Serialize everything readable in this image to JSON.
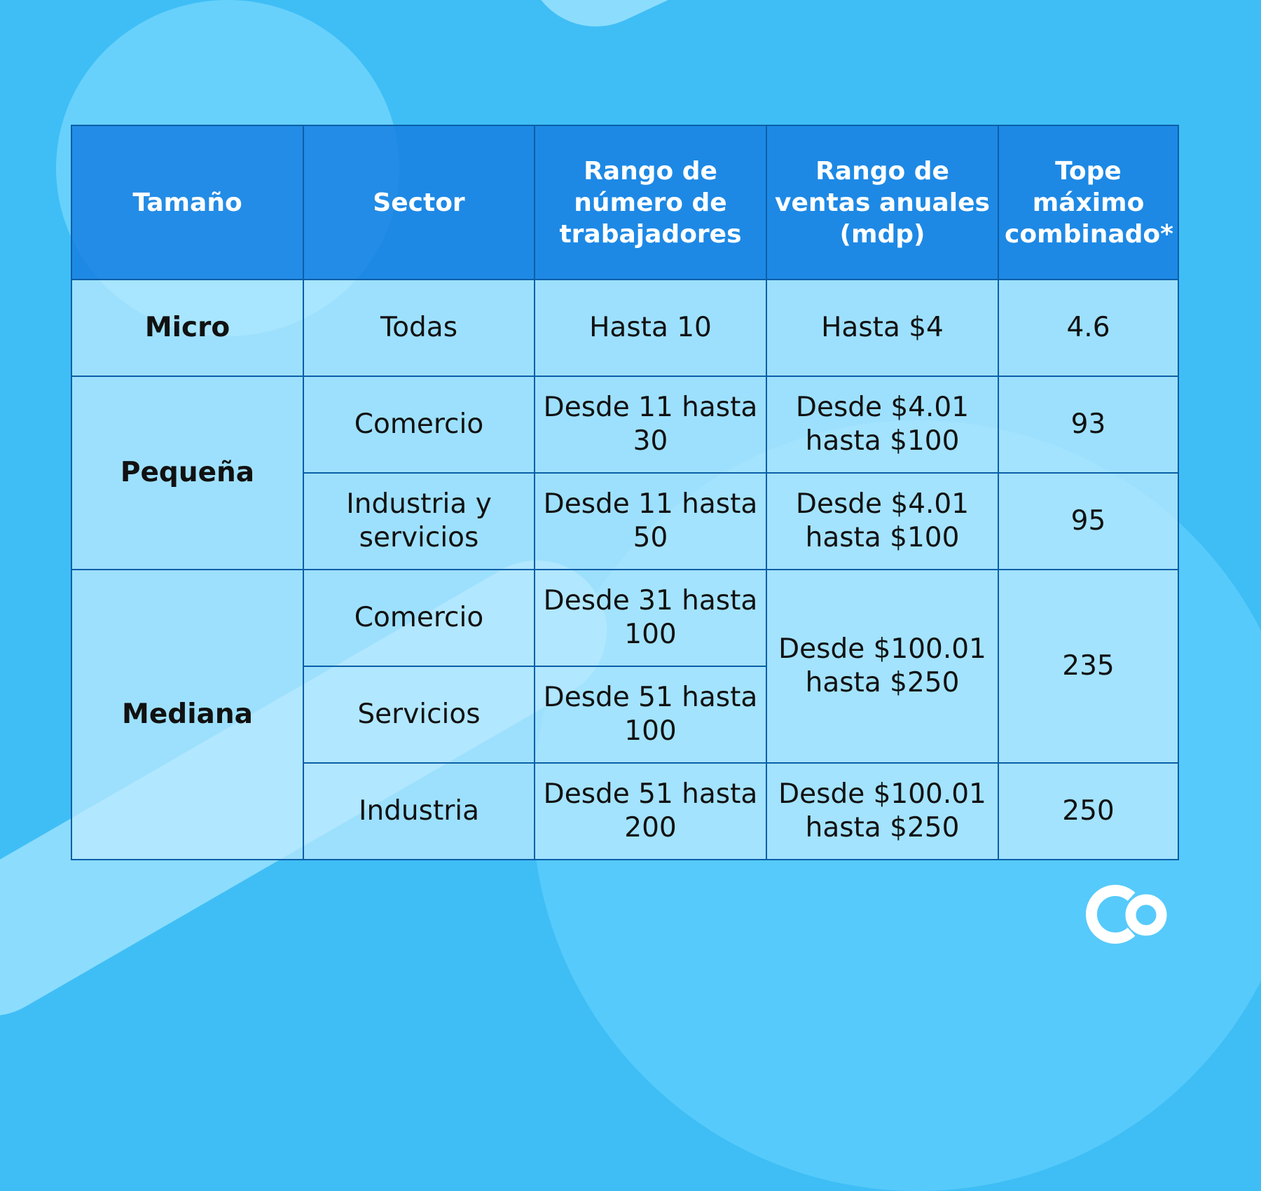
{
  "headers": [
    "Tamaño",
    "Sector",
    "Rango de número de trabajadores",
    "Rango de ventas anuales (mdp)",
    "Tope máximo combinado*"
  ],
  "rows": {
    "micro": {
      "size": "Micro",
      "sector": "Todas",
      "workers": "Hasta 10",
      "sales": "Hasta $4",
      "cap": "4.6"
    },
    "pequena": {
      "size": "Pequeña",
      "comercio": {
        "sector": "Comercio",
        "workers": "Desde 11 hasta 30",
        "sales": "Desde $4.01 hasta $100",
        "cap": "93"
      },
      "industria": {
        "sector": "Industria y servicios",
        "workers": "Desde 11 hasta 50",
        "sales": "Desde $4.01 hasta $100",
        "cap": "95"
      }
    },
    "mediana": {
      "size": "Mediana",
      "comercio": {
        "sector": "Comercio",
        "workers": "Desde 31 hasta 100"
      },
      "servicios": {
        "sector": "Servicios",
        "workers": "Desde 51 hasta 100"
      },
      "shared": {
        "sales": "Desde $100.01 hasta $250",
        "cap": "235"
      },
      "industria": {
        "sector": "Industria",
        "workers": "Desde 51 hasta 200",
        "sales": "Desde $100.01 hasta $250",
        "cap": "250"
      }
    }
  },
  "logo": {
    "text": "Co",
    "color": "#ffffff"
  }
}
